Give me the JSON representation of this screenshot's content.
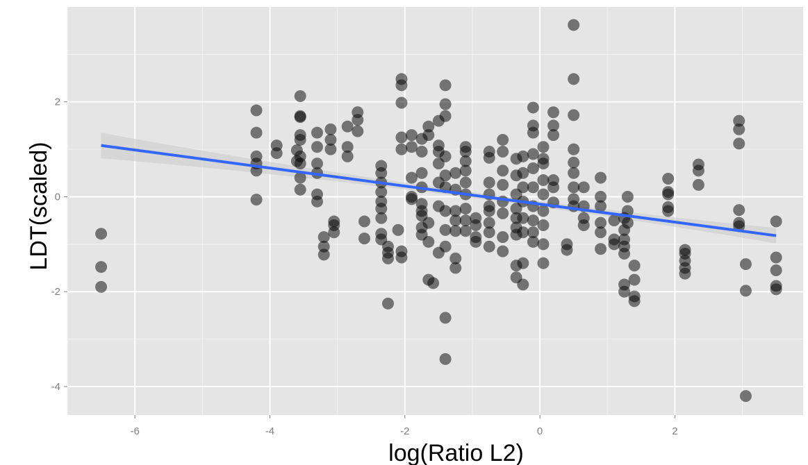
{
  "chart_data": {
    "type": "scatter",
    "title": "",
    "xlabel": "log(Ratio L2)",
    "ylabel": "LDT(scaled)",
    "xlim": [
      -7.0,
      3.9
    ],
    "ylim": [
      -4.6,
      4.0
    ],
    "x_ticks": [
      -6,
      -4,
      -2,
      0,
      2
    ],
    "y_ticks": [
      -4,
      -2,
      0,
      2
    ],
    "x_tick_labels": [
      "-6",
      "-4",
      "-2",
      "0",
      "2"
    ],
    "y_tick_labels": [
      "-4",
      "-2",
      "0",
      "2"
    ],
    "grid": true,
    "legend": "none",
    "colors": {
      "panel": "#e5e5e5",
      "grid_major": "#ffffff",
      "grid_minor": "#f2f2f2",
      "point": "#000000",
      "fit_line": "#3366ff",
      "ribbon": "#cccccc"
    },
    "point_opacity": 0.5,
    "fit": {
      "method": "lm",
      "x": [
        -6.5,
        3.5
      ],
      "y": [
        1.08,
        -0.82
      ],
      "se_band": true
    },
    "points": [
      [
        -6.5,
        -0.78
      ],
      [
        -6.5,
        -1.48
      ],
      [
        -6.5,
        -1.9
      ],
      [
        -4.2,
        1.82
      ],
      [
        -4.2,
        1.35
      ],
      [
        -4.2,
        0.85
      ],
      [
        -4.2,
        0.7
      ],
      [
        -4.2,
        0.55
      ],
      [
        -4.2,
        -0.06
      ],
      [
        -3.9,
        1.08
      ],
      [
        -3.9,
        0.92
      ],
      [
        -3.6,
        0.98
      ],
      [
        -3.6,
        0.75
      ],
      [
        -3.55,
        2.12
      ],
      [
        -3.55,
        1.7
      ],
      [
        -3.55,
        1.68
      ],
      [
        -3.55,
        1.3
      ],
      [
        -3.55,
        1.2
      ],
      [
        -3.55,
        0.85
      ],
      [
        -3.55,
        0.7
      ],
      [
        -3.55,
        0.4
      ],
      [
        -3.55,
        0.15
      ],
      [
        -3.3,
        1.35
      ],
      [
        -3.3,
        1.05
      ],
      [
        -3.3,
        0.7
      ],
      [
        -3.3,
        0.5
      ],
      [
        -3.3,
        0.05
      ],
      [
        -3.3,
        -0.1
      ],
      [
        -3.2,
        -0.85
      ],
      [
        -3.2,
        -1.05
      ],
      [
        -3.2,
        -1.22
      ],
      [
        -3.05,
        -0.52
      ],
      [
        -3.05,
        -0.6
      ],
      [
        -3.05,
        -0.75
      ],
      [
        -3.1,
        1.42
      ],
      [
        -3.1,
        1.2
      ],
      [
        -3.1,
        1.0
      ],
      [
        -2.85,
        1.48
      ],
      [
        -2.85,
        1.05
      ],
      [
        -2.85,
        0.85
      ],
      [
        -2.7,
        1.78
      ],
      [
        -2.7,
        1.62
      ],
      [
        -2.7,
        1.38
      ],
      [
        -2.6,
        -0.52
      ],
      [
        -2.6,
        -0.88
      ],
      [
        -2.35,
        0.65
      ],
      [
        -2.35,
        0.5
      ],
      [
        -2.35,
        0.3
      ],
      [
        -2.35,
        0.1
      ],
      [
        -2.35,
        -0.1
      ],
      [
        -2.35,
        -0.25
      ],
      [
        -2.35,
        -0.45
      ],
      [
        -2.35,
        -0.78
      ],
      [
        -2.35,
        -0.9
      ],
      [
        -2.25,
        -1.05
      ],
      [
        -2.25,
        -1.18
      ],
      [
        -2.25,
        -1.3
      ],
      [
        -2.25,
        -2.25
      ],
      [
        -2.1,
        -0.7
      ],
      [
        -2.05,
        2.48
      ],
      [
        -2.05,
        2.35
      ],
      [
        -2.05,
        1.98
      ],
      [
        -2.05,
        1.25
      ],
      [
        -2.05,
        1.0
      ],
      [
        -2.05,
        -1.15
      ],
      [
        -2.05,
        -1.28
      ],
      [
        -1.9,
        1.3
      ],
      [
        -1.9,
        1.05
      ],
      [
        -1.9,
        0.4
      ],
      [
        -1.9,
        0.0
      ],
      [
        -1.9,
        -0.05
      ],
      [
        -1.75,
        1.22
      ],
      [
        -1.75,
        0.95
      ],
      [
        -1.75,
        0.5
      ],
      [
        -1.75,
        0.2
      ],
      [
        -1.75,
        -0.15
      ],
      [
        -1.75,
        -0.3
      ],
      [
        -1.75,
        -0.4
      ],
      [
        -1.75,
        -0.65
      ],
      [
        -1.75,
        -0.8
      ],
      [
        -1.65,
        1.48
      ],
      [
        -1.65,
        1.3
      ],
      [
        -1.65,
        -0.55
      ],
      [
        -1.65,
        -0.95
      ],
      [
        -1.65,
        -1.75
      ],
      [
        -1.58,
        -1.82
      ],
      [
        -1.5,
        1.6
      ],
      [
        -1.5,
        1.08
      ],
      [
        -1.5,
        0.95
      ],
      [
        -1.5,
        0.7
      ],
      [
        -1.5,
        0.3
      ],
      [
        -1.5,
        -0.2
      ],
      [
        -1.5,
        -1.18
      ],
      [
        -1.4,
        2.35
      ],
      [
        -1.4,
        1.95
      ],
      [
        -1.4,
        1.7
      ],
      [
        -1.4,
        0.85
      ],
      [
        -1.4,
        0.45
      ],
      [
        -1.4,
        0.2
      ],
      [
        -1.4,
        -0.3
      ],
      [
        -1.4,
        -0.7
      ],
      [
        -1.4,
        -1.05
      ],
      [
        -1.4,
        -2.55
      ],
      [
        -1.4,
        -3.42
      ],
      [
        -1.25,
        0.5
      ],
      [
        -1.25,
        0.15
      ],
      [
        -1.25,
        -0.3
      ],
      [
        -1.25,
        -0.5
      ],
      [
        -1.25,
        -0.72
      ],
      [
        -1.25,
        -1.3
      ],
      [
        -1.25,
        -1.5
      ],
      [
        -1.1,
        1.05
      ],
      [
        -1.1,
        0.95
      ],
      [
        -1.1,
        0.75
      ],
      [
        -1.1,
        0.55
      ],
      [
        -1.1,
        0.3
      ],
      [
        -1.1,
        0.05
      ],
      [
        -1.1,
        -0.25
      ],
      [
        -1.1,
        -0.5
      ],
      [
        -1.1,
        -0.72
      ],
      [
        -0.95,
        -0.45
      ],
      [
        -0.95,
        -0.6
      ],
      [
        -0.95,
        -0.85
      ],
      [
        -0.95,
        -0.95
      ],
      [
        -0.75,
        0.95
      ],
      [
        -0.75,
        0.82
      ],
      [
        -0.75,
        0.3
      ],
      [
        -0.75,
        0.05
      ],
      [
        -0.75,
        -0.2
      ],
      [
        -0.75,
        -0.3
      ],
      [
        -0.75,
        -0.55
      ],
      [
        -0.75,
        -0.75
      ],
      [
        -0.75,
        -1.05
      ],
      [
        -0.55,
        1.2
      ],
      [
        -0.55,
        0.95
      ],
      [
        -0.55,
        0.55
      ],
      [
        -0.55,
        0.25
      ],
      [
        -0.55,
        -0.1
      ],
      [
        -0.55,
        -0.35
      ],
      [
        -0.55,
        -0.85
      ],
      [
        -0.55,
        -1.15
      ],
      [
        -0.35,
        0.8
      ],
      [
        -0.35,
        0.45
      ],
      [
        -0.35,
        0.05
      ],
      [
        -0.35,
        -0.25
      ],
      [
        -0.35,
        -0.45
      ],
      [
        -0.35,
        -0.65
      ],
      [
        -0.35,
        -0.8
      ],
      [
        -0.35,
        -1.45
      ],
      [
        -0.35,
        -1.7
      ],
      [
        -0.25,
        0.85
      ],
      [
        -0.25,
        0.5
      ],
      [
        -0.25,
        0.2
      ],
      [
        -0.25,
        -0.1
      ],
      [
        -0.25,
        -0.45
      ],
      [
        -0.25,
        -0.75
      ],
      [
        -0.25,
        -1.4
      ],
      [
        -0.25,
        -1.85
      ],
      [
        -0.1,
        1.88
      ],
      [
        -0.1,
        1.5
      ],
      [
        -0.1,
        1.35
      ],
      [
        -0.1,
        0.9
      ],
      [
        -0.1,
        0.6
      ],
      [
        -0.1,
        0.2
      ],
      [
        -0.1,
        -0.2
      ],
      [
        -0.1,
        -0.5
      ],
      [
        -0.1,
        -0.75
      ],
      [
        -0.1,
        -0.95
      ],
      [
        0.05,
        1.05
      ],
      [
        0.05,
        0.8
      ],
      [
        0.05,
        0.7
      ],
      [
        0.05,
        0.35
      ],
      [
        0.05,
        0.05
      ],
      [
        0.05,
        -0.3
      ],
      [
        0.05,
        -0.6
      ],
      [
        0.05,
        -1.0
      ],
      [
        0.05,
        -1.4
      ],
      [
        0.2,
        1.78
      ],
      [
        0.2,
        1.5
      ],
      [
        0.2,
        1.3
      ],
      [
        0.2,
        0.35
      ],
      [
        0.2,
        0.2
      ],
      [
        0.2,
        -0.12
      ],
      [
        0.4,
        -1.0
      ],
      [
        0.4,
        -1.12
      ],
      [
        0.5,
        3.62
      ],
      [
        0.5,
        2.48
      ],
      [
        0.5,
        1.72
      ],
      [
        0.5,
        1.0
      ],
      [
        0.5,
        0.72
      ],
      [
        0.5,
        0.5
      ],
      [
        0.5,
        0.2
      ],
      [
        0.5,
        -0.05
      ],
      [
        0.5,
        -0.2
      ],
      [
        0.65,
        0.2
      ],
      [
        0.65,
        -0.2
      ],
      [
        0.65,
        -0.45
      ],
      [
        0.65,
        -0.6
      ],
      [
        0.9,
        0.4
      ],
      [
        0.9,
        0.0
      ],
      [
        0.9,
        -0.2
      ],
      [
        0.9,
        -0.55
      ],
      [
        0.9,
        -0.75
      ],
      [
        0.9,
        -1.1
      ],
      [
        1.1,
        -0.5
      ],
      [
        1.1,
        -0.9
      ],
      [
        1.1,
        -1.0
      ],
      [
        1.25,
        -0.45
      ],
      [
        1.25,
        -0.7
      ],
      [
        1.25,
        -0.9
      ],
      [
        1.25,
        -1.05
      ],
      [
        1.25,
        -1.2
      ],
      [
        1.25,
        -1.85
      ],
      [
        1.25,
        -2.0
      ],
      [
        1.3,
        0.0
      ],
      [
        1.3,
        -0.3
      ],
      [
        1.3,
        -0.55
      ],
      [
        1.4,
        -1.45
      ],
      [
        1.4,
        -1.75
      ],
      [
        1.4,
        -2.1
      ],
      [
        1.4,
        -2.2
      ],
      [
        1.9,
        0.38
      ],
      [
        1.9,
        0.1
      ],
      [
        1.9,
        0.05
      ],
      [
        1.9,
        -0.22
      ],
      [
        1.9,
        -0.3
      ],
      [
        2.15,
        -1.12
      ],
      [
        2.15,
        -1.2
      ],
      [
        2.15,
        -1.35
      ],
      [
        2.15,
        -1.5
      ],
      [
        2.15,
        -1.62
      ],
      [
        2.35,
        0.68
      ],
      [
        2.35,
        0.55
      ],
      [
        2.35,
        0.25
      ],
      [
        2.95,
        1.6
      ],
      [
        2.95,
        1.42
      ],
      [
        2.95,
        1.12
      ],
      [
        2.95,
        -0.28
      ],
      [
        2.95,
        -0.55
      ],
      [
        2.95,
        -0.62
      ],
      [
        3.05,
        -1.42
      ],
      [
        3.05,
        -1.98
      ],
      [
        3.05,
        -4.2
      ],
      [
        3.5,
        -0.52
      ],
      [
        3.5,
        -1.28
      ],
      [
        3.5,
        -1.55
      ],
      [
        3.5,
        -1.88
      ],
      [
        3.5,
        -1.95
      ]
    ]
  }
}
